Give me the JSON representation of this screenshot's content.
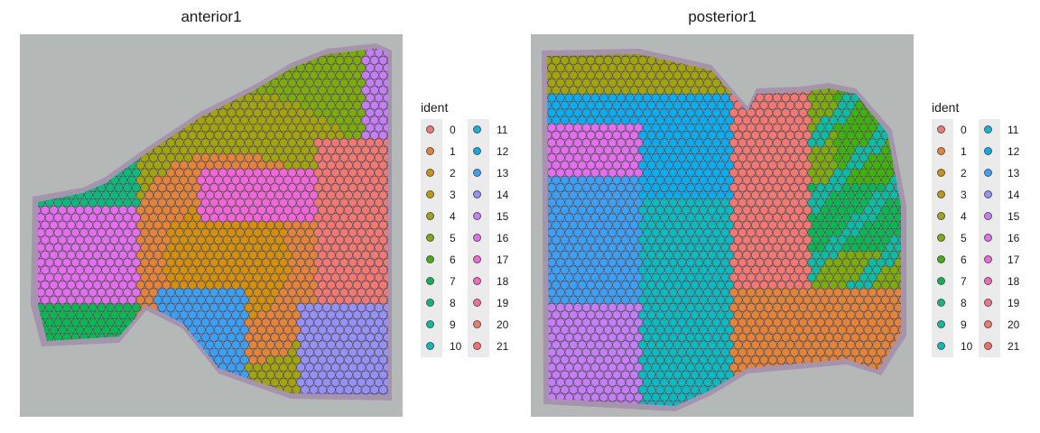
{
  "panels": [
    {
      "title": "anterior1"
    },
    {
      "title": "posterior1"
    }
  ],
  "legend": {
    "title": "ident",
    "items": [
      {
        "label": "0",
        "color": "#F8766D"
      },
      {
        "label": "1",
        "color": "#EA8331"
      },
      {
        "label": "2",
        "color": "#D89000"
      },
      {
        "label": "3",
        "color": "#C09B00"
      },
      {
        "label": "4",
        "color": "#A3A500"
      },
      {
        "label": "5",
        "color": "#7CAE00"
      },
      {
        "label": "6",
        "color": "#39B600"
      },
      {
        "label": "7",
        "color": "#00BB4E"
      },
      {
        "label": "8",
        "color": "#00BF7D"
      },
      {
        "label": "9",
        "color": "#00C1A3"
      },
      {
        "label": "10",
        "color": "#00BFC4"
      },
      {
        "label": "11",
        "color": "#00BAE0"
      },
      {
        "label": "12",
        "color": "#00B0F6"
      },
      {
        "label": "13",
        "color": "#35A2FF"
      },
      {
        "label": "14",
        "color": "#9590FF"
      },
      {
        "label": "15",
        "color": "#C77CFF"
      },
      {
        "label": "16",
        "color": "#E76BF3"
      },
      {
        "label": "17",
        "color": "#FA62DB"
      },
      {
        "label": "18",
        "color": "#FF62BC"
      },
      {
        "label": "19",
        "color": "#FF6C91"
      },
      {
        "label": "20",
        "color": "#F8766D"
      },
      {
        "label": "21",
        "color": "#FF6A6A"
      }
    ]
  },
  "colors": {
    "tissue_bg": "#b4b8b6",
    "stain": "#9a76a8",
    "spot_border": "#4a4a4a"
  }
}
